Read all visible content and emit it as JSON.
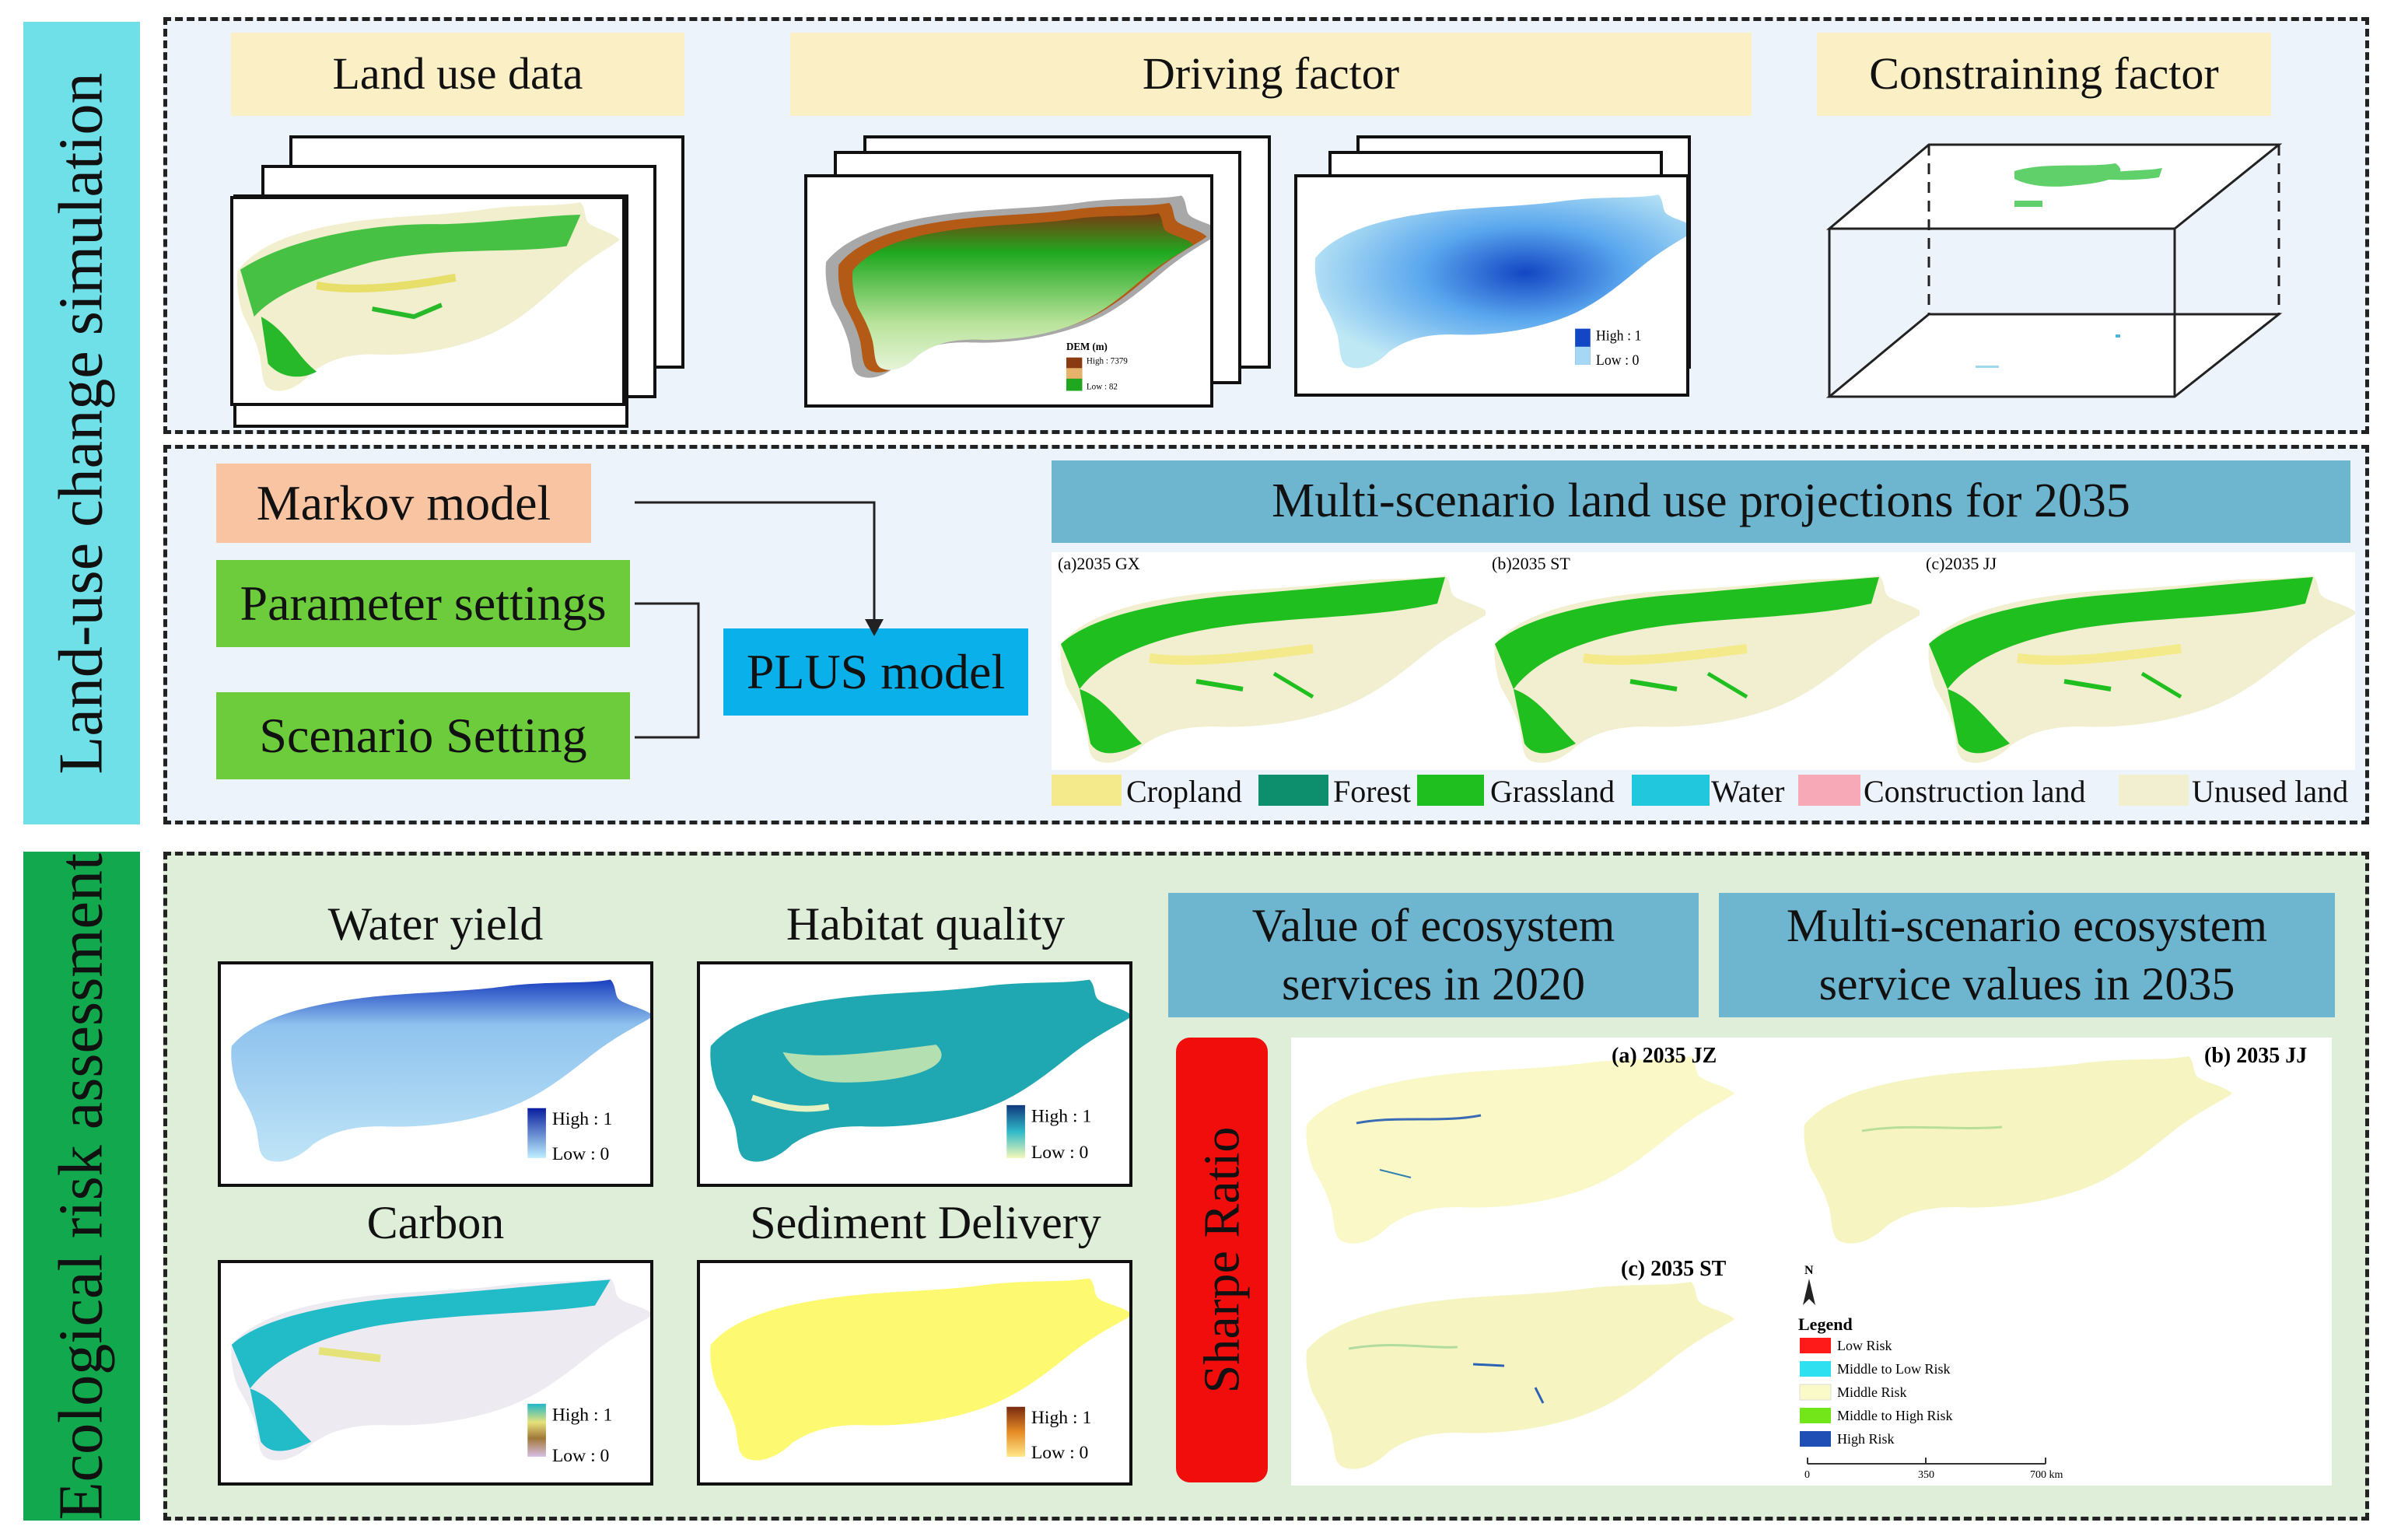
{
  "sidebar": {
    "top_label": "Land-use change simulation",
    "bottom_label": "Ecological risk assessment",
    "top_color": "#6fdfe8",
    "bottom_color": "#12a84e"
  },
  "inputs": {
    "land_use_label": "Land use data",
    "driving_factor_label": "Driving factor",
    "constraining_factor_label": "Constraining factor",
    "dem_legend": {
      "title": "DEM (m)",
      "high": "High : 7379",
      "low": "Low : 82"
    },
    "driver_legend": {
      "high": "High : 1",
      "low": "Low : 0"
    }
  },
  "model": {
    "markov_label": "Markov model",
    "markov_color": "#f8c4a2",
    "parameter_label": "Parameter settings",
    "scenario_label": "Scenario Setting",
    "settings_color": "#6dcc3c",
    "plus_label": "PLUS model",
    "plus_color": "#0ab0ea"
  },
  "projections": {
    "header": "Multi-scenario land use projections for 2035",
    "maps": [
      {
        "label": "(a)2035 GX"
      },
      {
        "label": "(b)2035 ST"
      },
      {
        "label": "(c)2035 JJ"
      }
    ],
    "legend": [
      {
        "label": "Cropland",
        "color": "#f4ea8c"
      },
      {
        "label": "Forest",
        "color": "#0d8f6e"
      },
      {
        "label": "Grassland",
        "color": "#1fbf1f"
      },
      {
        "label": "Water",
        "color": "#21c7dc"
      },
      {
        "label": "Construction land",
        "color": "#f8a9b8"
      },
      {
        "label": "Unused land",
        "color": "#f1efcf"
      }
    ]
  },
  "services": {
    "water_yield": {
      "title": "Water yield",
      "high": "High : 1",
      "low": "Low : 0"
    },
    "habitat_quality": {
      "title": "Habitat quality",
      "high": "High : 1",
      "low": "Low : 0"
    },
    "carbon": {
      "title": "Carbon",
      "high": "High : 1",
      "low": "Low : 0"
    },
    "sediment": {
      "title": "Sediment Delivery",
      "high": "High : 1",
      "low": "Low : 0"
    }
  },
  "ecosystem": {
    "value_2020_header": "Value of ecosystem services in 2020",
    "multi_2035_header": "Multi-scenario ecosystem service values in 2035",
    "sharpe_label": "Sharpe Ratio",
    "sharpe_color": "#f20d0d",
    "maps": [
      {
        "label": "(a) 2035 JZ"
      },
      {
        "label": "(b) 2035 JJ"
      },
      {
        "label": "(c) 2035 ST"
      }
    ],
    "north": "N",
    "legend_title": "Legend",
    "legend": [
      {
        "label": "Low Risk",
        "color": "#ff1a1a"
      },
      {
        "label": "Middle to Low Risk",
        "color": "#2ee0f0"
      },
      {
        "label": "Middle Risk",
        "color": "#fafac8"
      },
      {
        "label": "Middle to High Risk",
        "color": "#73e61a"
      },
      {
        "label": "High Risk",
        "color": "#1f4fb5"
      }
    ],
    "scale": [
      "0",
      "350",
      "700 km"
    ]
  }
}
